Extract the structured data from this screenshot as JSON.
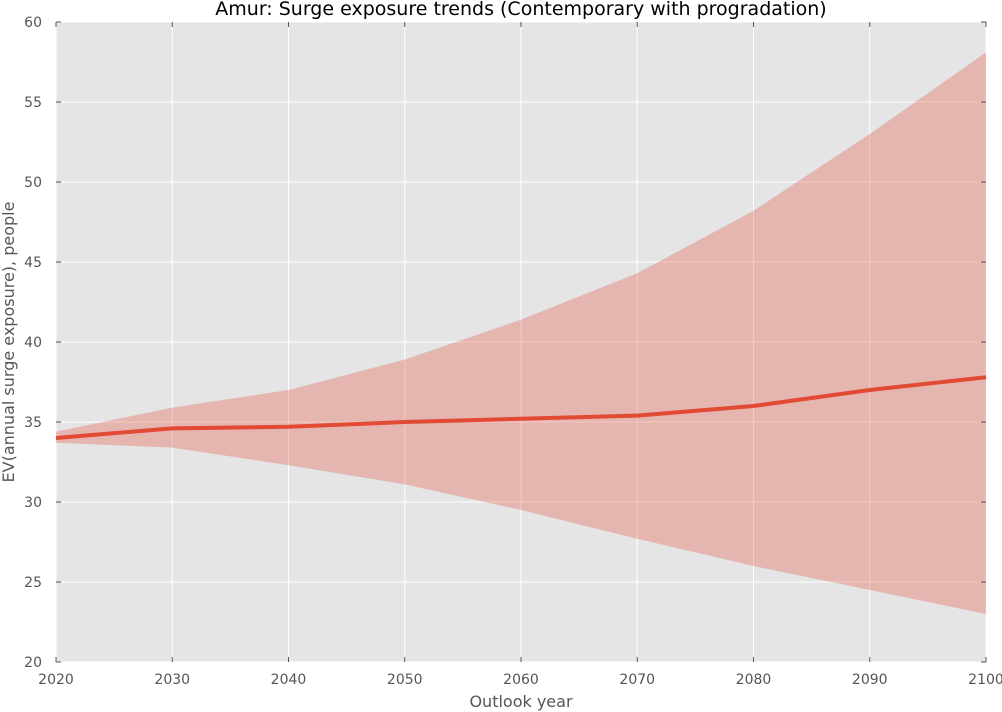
{
  "chart_data": {
    "type": "line",
    "title": "Amur: Surge exposure trends (Contemporary with progradation)",
    "xlabel": "Outlook year",
    "ylabel": "EV(annual surge exposure), people",
    "xlim": [
      2020,
      2100
    ],
    "ylim": [
      20,
      60
    ],
    "xticks": [
      2020,
      2030,
      2040,
      2050,
      2060,
      2070,
      2080,
      2090,
      2100
    ],
    "yticks": [
      20,
      25,
      30,
      35,
      40,
      45,
      50,
      55,
      60
    ],
    "grid": true,
    "x": [
      2020,
      2030,
      2040,
      2050,
      2060,
      2070,
      2080,
      2090,
      2100
    ],
    "series": [
      {
        "values": [
          34.0,
          34.6,
          34.7,
          35.0,
          35.2,
          35.4,
          36.0,
          37.0,
          37.8
        ],
        "lower": [
          33.7,
          33.4,
          32.3,
          31.1,
          29.5,
          27.7,
          26.0,
          24.5,
          23.0
        ],
        "upper": [
          34.4,
          35.9,
          37.0,
          38.9,
          41.4,
          44.3,
          48.2,
          53.0,
          58.1
        ],
        "color": "#E24A33",
        "band_color": "#E24A33"
      }
    ],
    "colors": {
      "plot_background": "#E5E5E5",
      "grid": "#FFFFFF",
      "tick_text": "#555555"
    }
  }
}
